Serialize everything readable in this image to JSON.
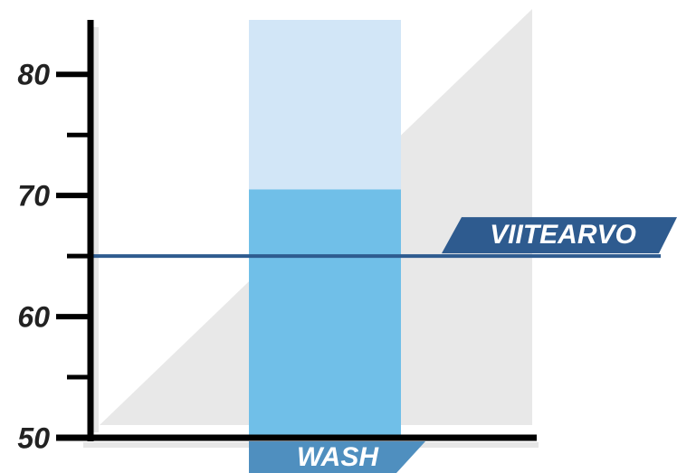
{
  "chart_data": {
    "type": "bar",
    "categories": [
      "WASH"
    ],
    "values": [
      70.5
    ],
    "color": "#70bfe8",
    "track_color": "#d2e6f7",
    "ylim": [
      50,
      84.5
    ],
    "yticks": [
      50,
      60,
      70,
      80
    ],
    "minor_yticks": [
      55,
      65,
      75
    ],
    "reference_line": {
      "label": "VIITEARVO",
      "value": 65,
      "color": "#2e5b8f"
    }
  }
}
